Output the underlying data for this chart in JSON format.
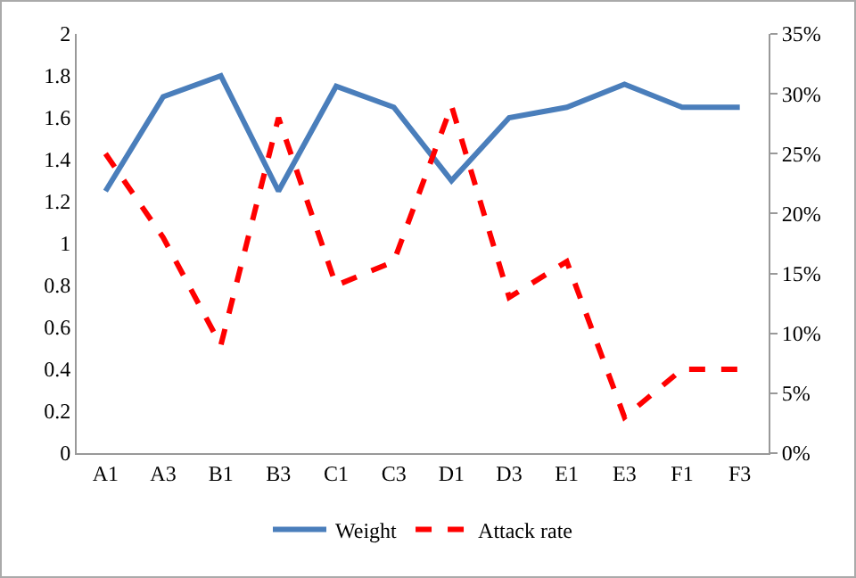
{
  "chart_data": {
    "type": "line",
    "categories": [
      "A1",
      "A3",
      "B1",
      "B3",
      "C1",
      "C3",
      "D1",
      "D3",
      "E1",
      "E3",
      "F1",
      "F3"
    ],
    "series": [
      {
        "name": "Weight",
        "color": "#4a7ebb",
        "line_style": "solid",
        "values": [
          1.25,
          1.7,
          1.8,
          1.25,
          1.75,
          1.65,
          1.3,
          1.6,
          1.65,
          1.76,
          1.65,
          1.65
        ]
      },
      {
        "name": "Attack rate",
        "color": "#ff0000",
        "line_style": "dashed",
        "axis": "y2",
        "values": [
          25,
          18,
          9,
          28,
          14,
          16,
          29,
          13,
          16,
          3,
          7,
          7
        ]
      }
    ],
    "ylim": [
      0,
      2
    ],
    "yticks": [
      0,
      0.2,
      0.4,
      0.6,
      0.8,
      1,
      1.2,
      1.4,
      1.6,
      1.8,
      2
    ],
    "y2lim": [
      0,
      35
    ],
    "y2ticks": [
      {
        "value": 0,
        "label": "0%"
      },
      {
        "value": 5,
        "label": "5%"
      },
      {
        "value": 10,
        "label": "10%"
      },
      {
        "value": 15,
        "label": "15%"
      },
      {
        "value": 20,
        "label": "20%"
      },
      {
        "value": 25,
        "label": "25%"
      },
      {
        "value": 30,
        "label": "30%"
      },
      {
        "value": 35,
        "label": "35%"
      }
    ],
    "grid": false,
    "legend": "bottom",
    "marker": "none"
  }
}
